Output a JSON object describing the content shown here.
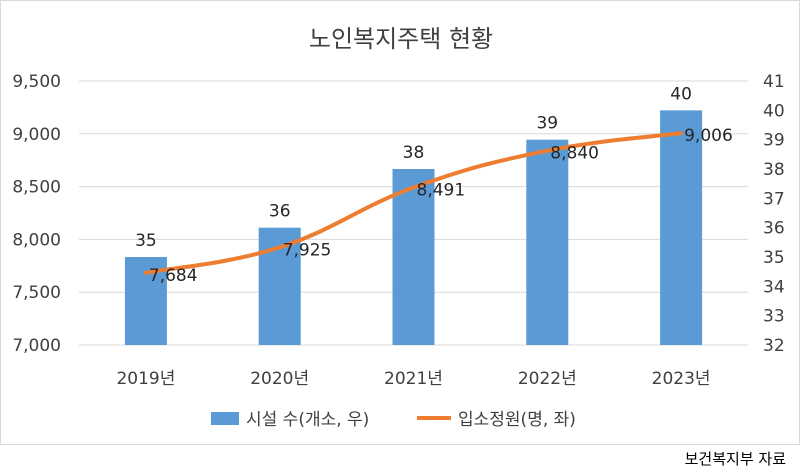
{
  "chart_data": {
    "type": "bar",
    "title": "노인복지주택 현황",
    "categories": [
      "2019년",
      "2020년",
      "2021년",
      "2022년",
      "2023년"
    ],
    "series": [
      {
        "name": "시설 수(개소, 우)",
        "kind": "bar",
        "axis": "right",
        "values": [
          35,
          36,
          38,
          39,
          40
        ],
        "labels": [
          "35",
          "36",
          "38",
          "39",
          "40"
        ]
      },
      {
        "name": "입소정원(명, 좌)",
        "kind": "line",
        "axis": "left",
        "values": [
          7684,
          7925,
          8491,
          8840,
          9006
        ],
        "labels": [
          "7,684",
          "7,925",
          "8,491",
          "8,840",
          "9,006"
        ]
      }
    ],
    "left_axis": {
      "min": 7000,
      "max": 9500,
      "ticks": [
        "7,000",
        "7,500",
        "8,000",
        "8,500",
        "9,000",
        "9,500"
      ],
      "tick_values": [
        7000,
        7500,
        8000,
        8500,
        9000,
        9500
      ]
    },
    "right_axis": {
      "min": 32,
      "max": 41,
      "ticks": [
        "32",
        "33",
        "34",
        "35",
        "36",
        "37",
        "38",
        "39",
        "40",
        "41"
      ],
      "tick_values": [
        32,
        33,
        34,
        35,
        36,
        37,
        38,
        39,
        40,
        41
      ]
    },
    "grid": true,
    "legend_position": "bottom",
    "colors": {
      "bar": "#5b9bd5",
      "line": "#ed7d31",
      "grid": "#d9d9d9"
    }
  },
  "source_note": "보건복지부 자료"
}
